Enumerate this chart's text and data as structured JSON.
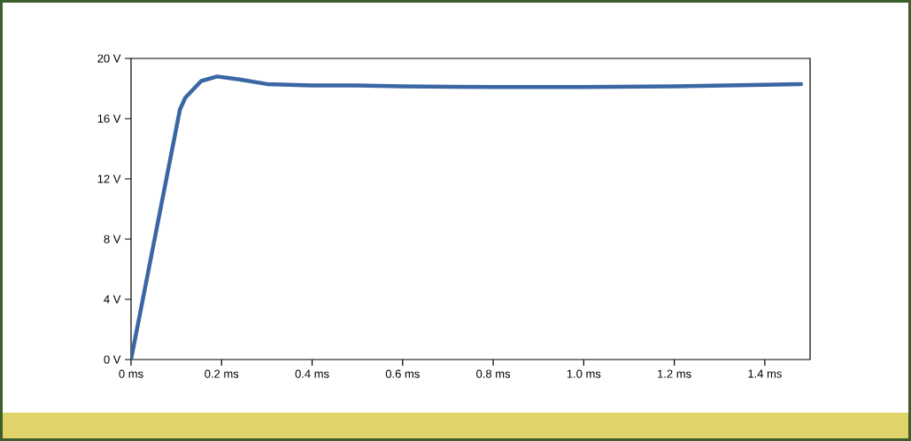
{
  "chart_data": {
    "type": "line",
    "x": [
      0,
      0.108,
      0.12,
      0.155,
      0.19,
      0.24,
      0.3,
      0.4,
      0.5,
      0.6,
      0.8,
      1.0,
      1.2,
      1.4,
      1.48
    ],
    "series": [
      {
        "color": "#3a67a3",
        "values": [
          0,
          16.6,
          17.4,
          18.5,
          18.8,
          18.6,
          18.3,
          18.2,
          18.2,
          18.15,
          18.1,
          18.1,
          18.15,
          18.25,
          18.3
        ]
      }
    ],
    "xlim": [
      0,
      1.5
    ],
    "ylim": [
      0,
      20
    ],
    "xticks": [
      {
        "value": 0,
        "label": "0 ms"
      },
      {
        "value": 0.2,
        "label": "0.2 ms"
      },
      {
        "value": 0.4,
        "label": "0.4 ms"
      },
      {
        "value": 0.6,
        "label": "0.6 ms"
      },
      {
        "value": 0.8,
        "label": "0.8 ms"
      },
      {
        "value": 1.0,
        "label": "1.0 ms"
      },
      {
        "value": 1.2,
        "label": "1.2 ms"
      },
      {
        "value": 1.4,
        "label": "1.4 ms"
      }
    ],
    "yticks": [
      {
        "value": 0,
        "label": "0 V"
      },
      {
        "value": 4,
        "label": "4 V"
      },
      {
        "value": 8,
        "label": "8 V"
      },
      {
        "value": 12,
        "label": "12 V"
      },
      {
        "value": 16,
        "label": "16 V"
      },
      {
        "value": 20,
        "label": "20 V"
      }
    ],
    "grid": false,
    "marker": "none",
    "line_style": "solid"
  }
}
